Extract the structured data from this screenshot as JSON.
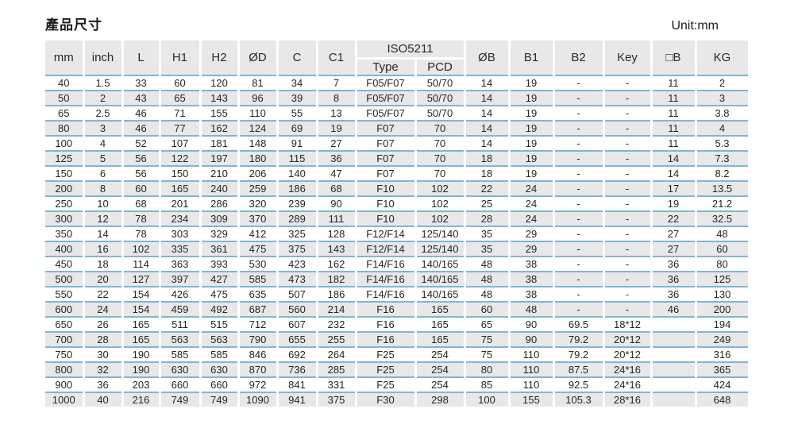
{
  "page": {
    "title": "產品尺寸",
    "unit_label": "Unit:mm"
  },
  "table": {
    "group_header": "ISO5211",
    "columns": [
      "mm",
      "inch",
      "L",
      "H1",
      "H2",
      "ØD",
      "C",
      "C1",
      "Type",
      "PCD",
      "ØB",
      "B1",
      "B2",
      "Key",
      "□B",
      "KG"
    ],
    "rows": [
      [
        "40",
        "1.5",
        "33",
        "60",
        "120",
        "81",
        "34",
        "7",
        "F05/F07",
        "50/70",
        "14",
        "19",
        "-",
        "-",
        "11",
        "2"
      ],
      [
        "50",
        "2",
        "43",
        "65",
        "143",
        "96",
        "39",
        "8",
        "F05/F07",
        "50/70",
        "14",
        "19",
        "-",
        "-",
        "11",
        "3"
      ],
      [
        "65",
        "2.5",
        "46",
        "71",
        "155",
        "110",
        "55",
        "13",
        "F05/F07",
        "50/70",
        "14",
        "19",
        "-",
        "-",
        "11",
        "3.8"
      ],
      [
        "80",
        "3",
        "46",
        "77",
        "162",
        "124",
        "69",
        "19",
        "F07",
        "70",
        "14",
        "19",
        "-",
        "-",
        "11",
        "4"
      ],
      [
        "100",
        "4",
        "52",
        "107",
        "181",
        "148",
        "91",
        "27",
        "F07",
        "70",
        "14",
        "19",
        "-",
        "-",
        "11",
        "5.3"
      ],
      [
        "125",
        "5",
        "56",
        "122",
        "197",
        "180",
        "115",
        "36",
        "F07",
        "70",
        "18",
        "19",
        "-",
        "-",
        "14",
        "7.3"
      ],
      [
        "150",
        "6",
        "56",
        "150",
        "210",
        "206",
        "140",
        "47",
        "F07",
        "70",
        "18",
        "19",
        "-",
        "-",
        "14",
        "8.2"
      ],
      [
        "200",
        "8",
        "60",
        "165",
        "240",
        "259",
        "186",
        "68",
        "F10",
        "102",
        "22",
        "24",
        "-",
        "-",
        "17",
        "13.5"
      ],
      [
        "250",
        "10",
        "68",
        "201",
        "286",
        "320",
        "239",
        "90",
        "F10",
        "102",
        "25",
        "24",
        "-",
        "-",
        "19",
        "21.2"
      ],
      [
        "300",
        "12",
        "78",
        "234",
        "309",
        "370",
        "289",
        "111",
        "F10",
        "102",
        "28",
        "24",
        "-",
        "-",
        "22",
        "32.5"
      ],
      [
        "350",
        "14",
        "78",
        "303",
        "329",
        "412",
        "325",
        "128",
        "F12/F14",
        "125/140",
        "35",
        "29",
        "-",
        "-",
        "27",
        "48"
      ],
      [
        "400",
        "16",
        "102",
        "335",
        "361",
        "475",
        "375",
        "143",
        "F12/F14",
        "125/140",
        "35",
        "29",
        "-",
        "-",
        "27",
        "60"
      ],
      [
        "450",
        "18",
        "114",
        "363",
        "393",
        "530",
        "423",
        "162",
        "F14/F16",
        "140/165",
        "48",
        "38",
        "-",
        "-",
        "36",
        "80"
      ],
      [
        "500",
        "20",
        "127",
        "397",
        "427",
        "585",
        "473",
        "182",
        "F14/F16",
        "140/165",
        "48",
        "38",
        "-",
        "-",
        "36",
        "125"
      ],
      [
        "550",
        "22",
        "154",
        "426",
        "475",
        "635",
        "507",
        "186",
        "F14/F16",
        "140/165",
        "48",
        "38",
        "-",
        "-",
        "36",
        "130"
      ],
      [
        "600",
        "24",
        "154",
        "459",
        "492",
        "687",
        "560",
        "214",
        "F16",
        "165",
        "60",
        "48",
        "-",
        "-",
        "46",
        "200"
      ],
      [
        "650",
        "26",
        "165",
        "511",
        "515",
        "712",
        "607",
        "232",
        "F16",
        "165",
        "65",
        "90",
        "69.5",
        "18*12",
        "",
        "194"
      ],
      [
        "700",
        "28",
        "165",
        "563",
        "563",
        "790",
        "655",
        "255",
        "F16",
        "165",
        "75",
        "90",
        "79.2",
        "20*12",
        "",
        "249"
      ],
      [
        "750",
        "30",
        "190",
        "585",
        "585",
        "846",
        "692",
        "264",
        "F25",
        "254",
        "75",
        "110",
        "79.2",
        "20*12",
        "",
        "316"
      ],
      [
        "800",
        "32",
        "190",
        "630",
        "630",
        "870",
        "736",
        "285",
        "F25",
        "254",
        "80",
        "110",
        "87.5",
        "24*16",
        "",
        "365"
      ],
      [
        "900",
        "36",
        "203",
        "660",
        "660",
        "972",
        "841",
        "331",
        "F25",
        "254",
        "85",
        "110",
        "92.5",
        "24*16",
        "",
        "424"
      ],
      [
        "1000",
        "40",
        "216",
        "749",
        "749",
        "1090",
        "941",
        "375",
        "F30",
        "298",
        "100",
        "155",
        "105.3",
        "28*16",
        "",
        "648"
      ]
    ]
  },
  "colors": {
    "header_bg": "#e8e8e8",
    "alt_row_bg": "#e8e8e8",
    "divider_blue": "#7fb5d8",
    "text": "#262626"
  }
}
